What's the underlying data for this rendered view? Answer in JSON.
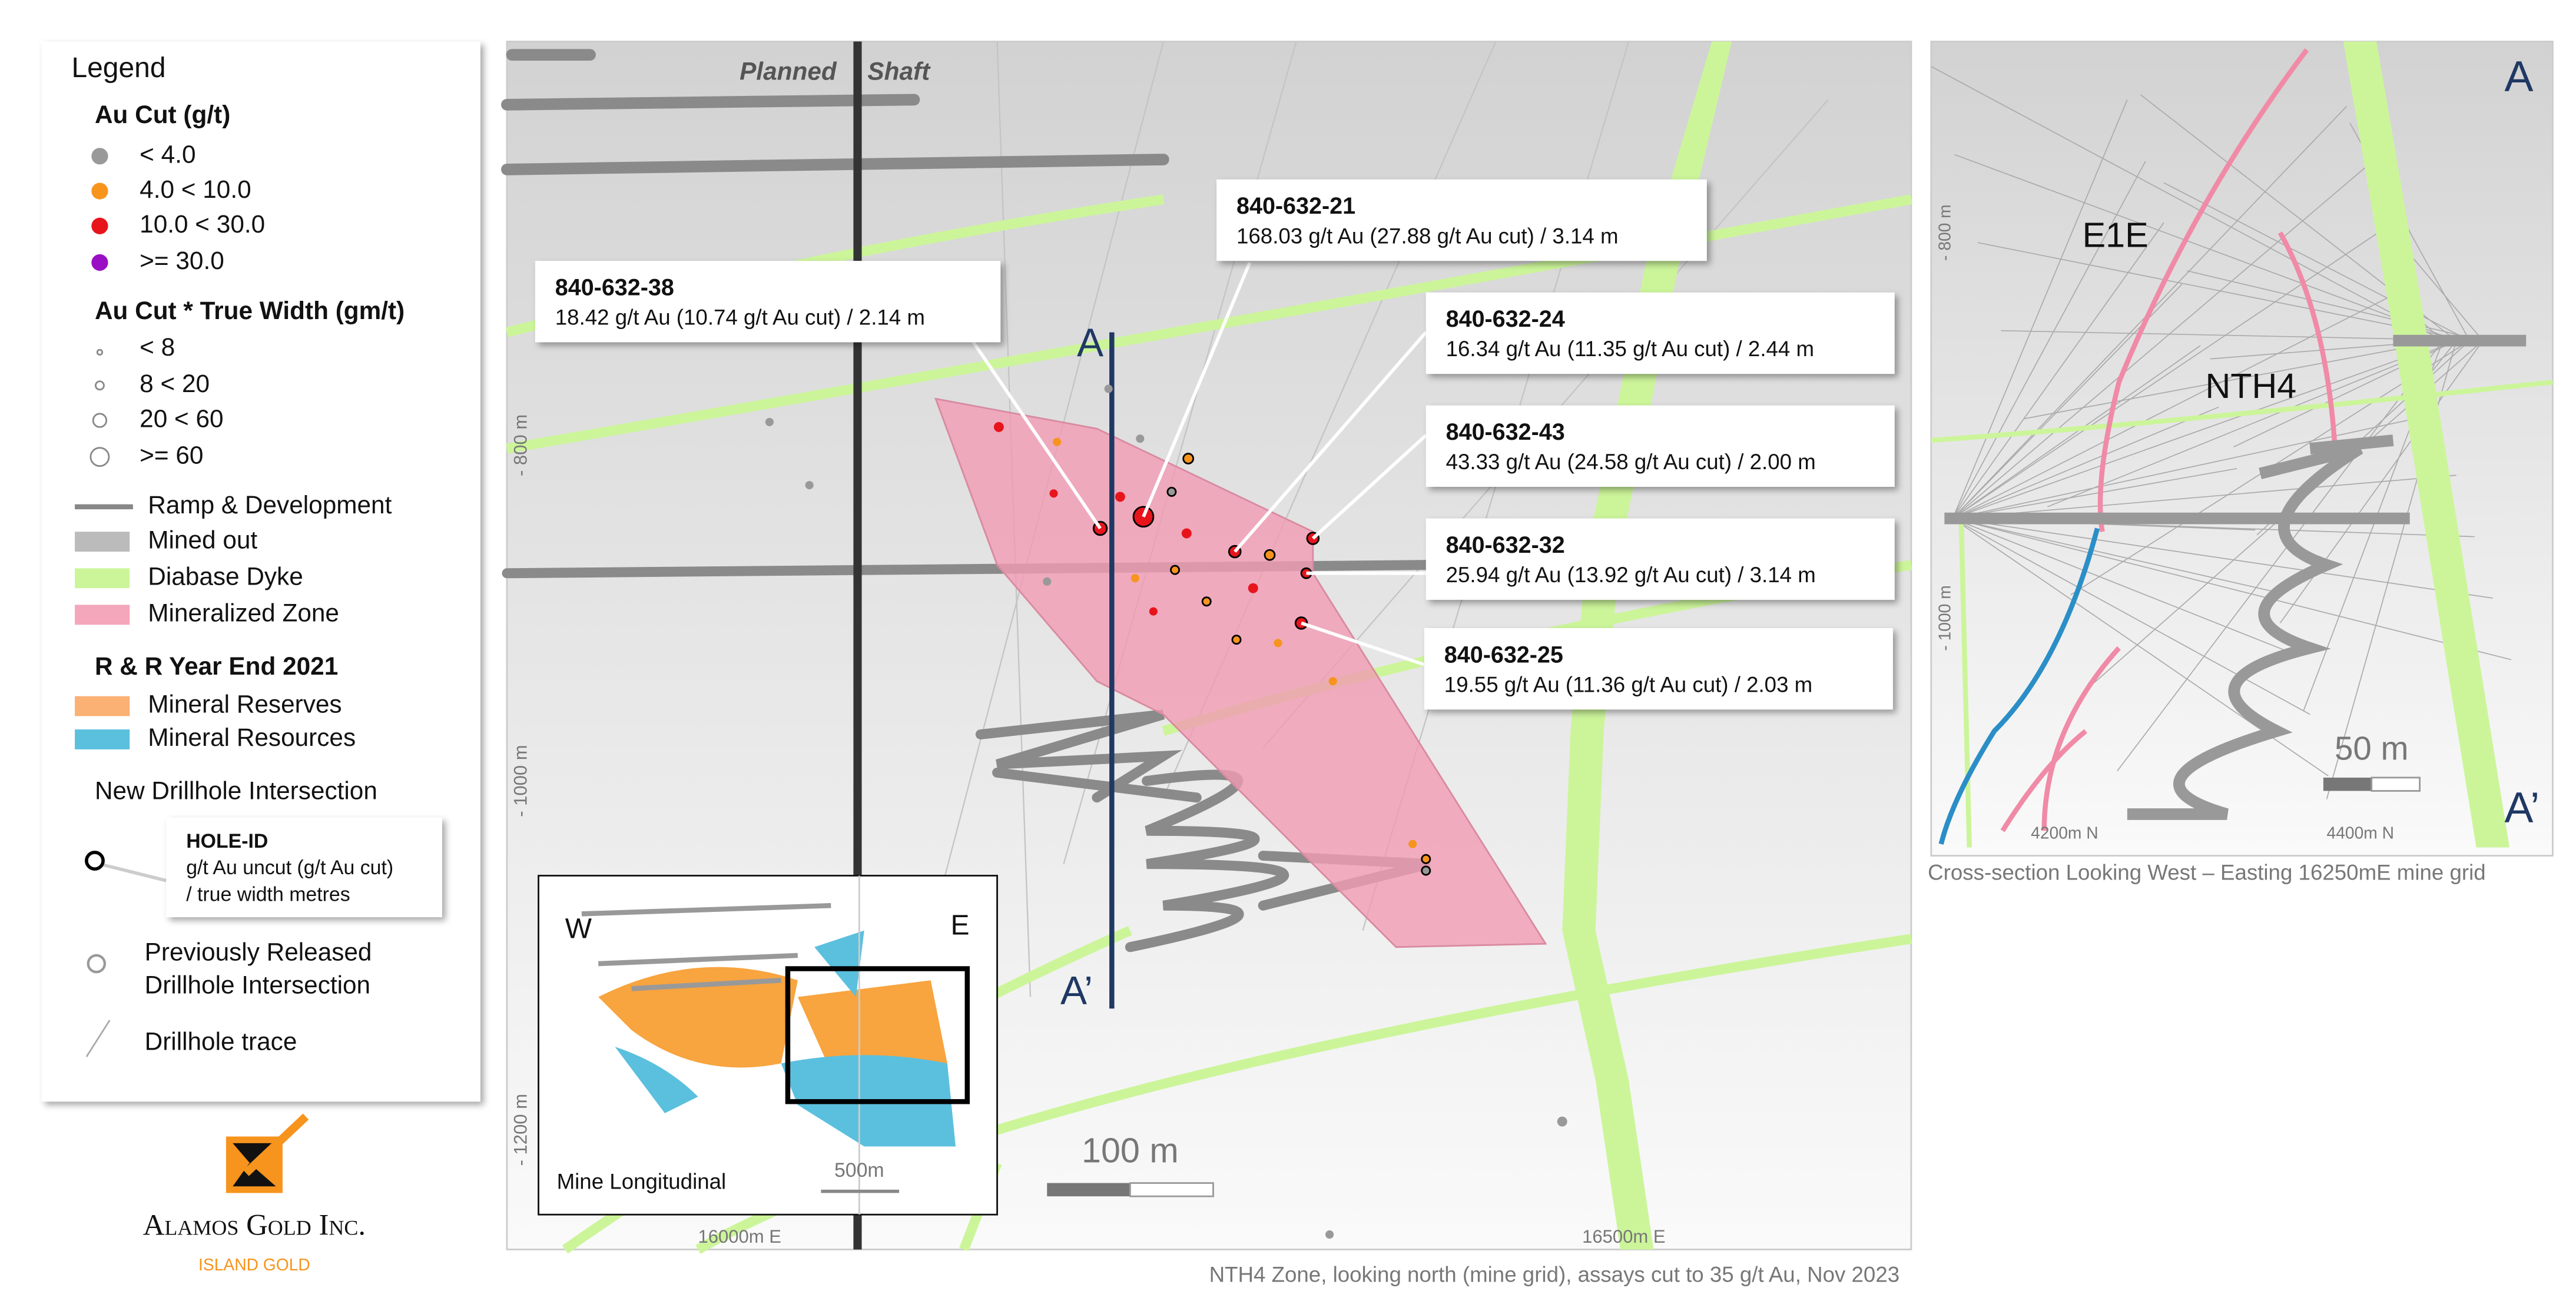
{
  "legend": {
    "title": "Legend",
    "au_cut": {
      "title": "Au Cut (g/t)",
      "items": [
        "< 4.0",
        "4.0 < 10.0",
        "10.0 < 30.0",
        ">= 30.0"
      ]
    },
    "true_width": {
      "title": "Au Cut * True Width (gm/t)",
      "items": [
        "< 8",
        "8 < 20",
        "20 < 60",
        ">= 60"
      ]
    },
    "features": [
      "Ramp & Development",
      "Mined out",
      "Diabase Dyke",
      "Mineralized Zone"
    ],
    "rr": {
      "title": "R & R Year End 2021",
      "items": [
        "Mineral Reserves",
        "Mineral Resources"
      ]
    },
    "new_intersection": {
      "title": "New Drillhole Intersection",
      "hole_id": "HOLE-ID",
      "line1": "g/t Au uncut (g/t Au cut)",
      "line2": "/ true width metres"
    },
    "previous": [
      "Previously Released",
      "Drillhole Intersection"
    ],
    "trace": "Drillhole trace"
  },
  "logo": {
    "name": "Alamos Gold Inc.",
    "sub": "ISLAND GOLD"
  },
  "longitudinal": {
    "shaft": [
      "Planned",
      "Shaft"
    ],
    "section_start": "A",
    "section_end": "A’",
    "depths": [
      "- 800 m",
      "- 1000 m",
      "- 1200 m"
    ],
    "eastings": [
      "16000m E",
      "16500m E"
    ],
    "scale": "100 m",
    "inset": {
      "west": "W",
      "east": "E",
      "title": "Mine Longitudinal",
      "scale": "500m"
    },
    "caption": "NTH4 Zone, looking north (mine grid), assays cut to 35 g/t Au, Nov 2023"
  },
  "callouts": [
    {
      "id": "840-632-38",
      "text": "18.42 g/t Au (10.74 g/t Au cut) / 2.14 m"
    },
    {
      "id": "840-632-21",
      "text": "168.03 g/t Au (27.88 g/t Au cut) / 3.14 m"
    },
    {
      "id": "840-632-24",
      "text": "16.34 g/t Au (11.35 g/t Au cut) / 2.44 m"
    },
    {
      "id": "840-632-43",
      "text": "43.33 g/t Au (24.58 g/t Au cut) / 2.00 m"
    },
    {
      "id": "840-632-32",
      "text": "25.94 g/t Au (13.92 g/t Au cut) / 3.14 m"
    },
    {
      "id": "840-632-25",
      "text": "19.55 g/t Au (11.36 g/t Au cut) / 2.03 m"
    }
  ],
  "cross_section": {
    "start": "A",
    "end": "A’",
    "zones": [
      "E1E",
      "NTH4"
    ],
    "depths": [
      "- 800 m",
      "- 1000 m"
    ],
    "scale": "50 m",
    "northings": [
      "4200m N",
      "4400m N"
    ],
    "caption": "Cross-section Looking West – Easting 16250mE mine grid"
  }
}
